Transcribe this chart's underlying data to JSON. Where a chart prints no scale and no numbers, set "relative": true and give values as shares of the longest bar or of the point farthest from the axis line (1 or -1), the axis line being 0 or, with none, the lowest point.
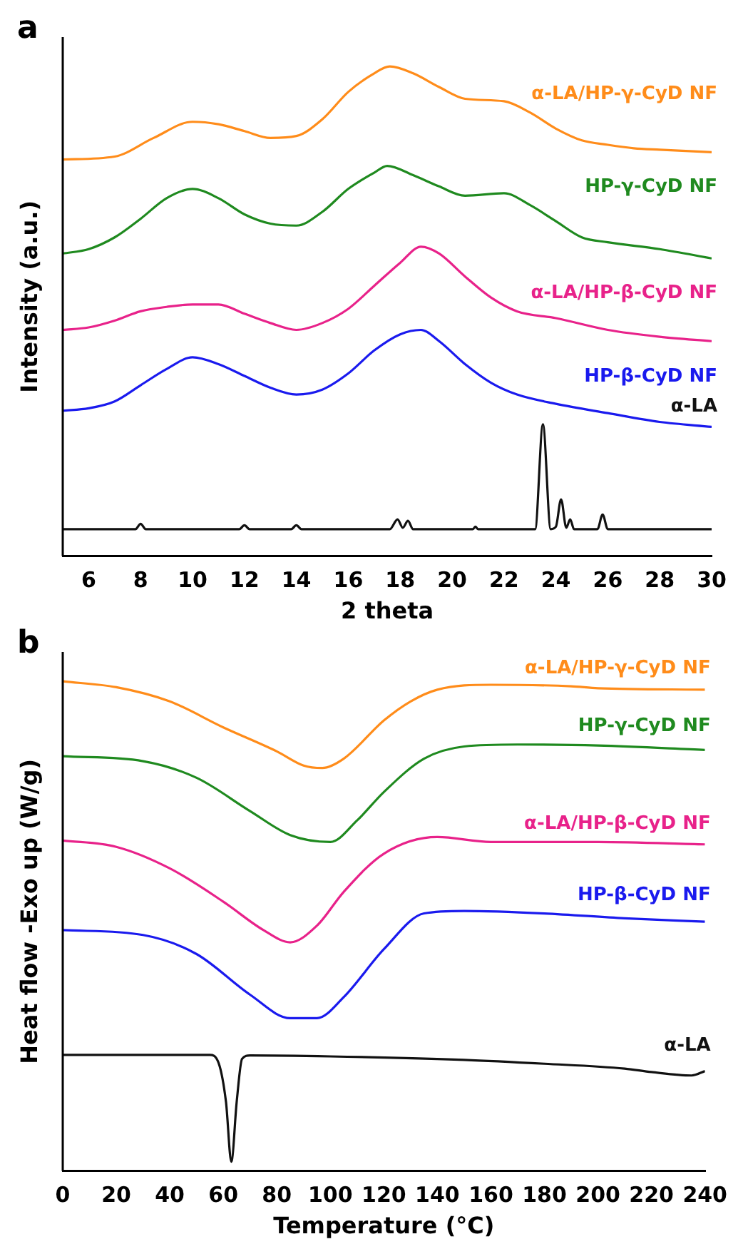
{
  "chart_data": [
    {
      "type": "line",
      "title": "a",
      "xlabel": "2 theta",
      "ylabel": "Intensity (a.u.)",
      "relative": true,
      "legend": false,
      "grid": false,
      "marker": "none",
      "line_style": "solid",
      "xlim": [
        5,
        30
      ],
      "xticks": [
        6,
        8,
        10,
        12,
        14,
        16,
        18,
        20,
        22,
        24,
        26,
        28,
        30
      ],
      "series": [
        {
          "name": "α-LA/HP-γ-CyD NF",
          "color": "#ff8c1a",
          "x": [
            5,
            7,
            8.5,
            10,
            11,
            12,
            13,
            14,
            15,
            16,
            17,
            17.6,
            18.5,
            19.5,
            20.5,
            22,
            23,
            24,
            25,
            26,
            27,
            28,
            30
          ],
          "values": [
            0.81,
            0.816,
            0.854,
            0.887,
            0.882,
            0.868,
            0.854,
            0.858,
            0.892,
            0.948,
            0.986,
            1.0,
            0.986,
            0.958,
            0.934,
            0.929,
            0.906,
            0.873,
            0.849,
            0.84,
            0.833,
            0.83,
            0.825
          ]
        },
        {
          "name": "HP-γ-CyD NF",
          "color": "#1f8a1f",
          "x": [
            5,
            6,
            7,
            8,
            9,
            10,
            11,
            12,
            13,
            14,
            15,
            16,
            17,
            17.5,
            18.5,
            19.5,
            20.5,
            22,
            23,
            24,
            25,
            26,
            28,
            30
          ],
          "values": [
            0.618,
            0.627,
            0.651,
            0.689,
            0.731,
            0.75,
            0.731,
            0.698,
            0.679,
            0.675,
            0.703,
            0.75,
            0.783,
            0.797,
            0.778,
            0.755,
            0.736,
            0.741,
            0.717,
            0.684,
            0.651,
            0.641,
            0.627,
            0.608
          ]
        },
        {
          "name": "α-LA/HP-β-CyD NF",
          "color": "#e8228a",
          "x": [
            5,
            6,
            7,
            8,
            9,
            10,
            11,
            12,
            13,
            14,
            15,
            16,
            17,
            18,
            18.8,
            19.5,
            20.5,
            21.5,
            22.5,
            24,
            26,
            28,
            30
          ],
          "values": [
            0.462,
            0.467,
            0.481,
            0.5,
            0.509,
            0.514,
            0.514,
            0.495,
            0.476,
            0.462,
            0.476,
            0.505,
            0.552,
            0.599,
            0.632,
            0.618,
            0.571,
            0.528,
            0.5,
            0.486,
            0.462,
            0.448,
            0.439
          ]
        },
        {
          "name": "HP-β-CyD NF",
          "color": "#1a1aee",
          "x": [
            5,
            6,
            7,
            8,
            9,
            10,
            11,
            12,
            13,
            14,
            15,
            16,
            17,
            18,
            18.8,
            19.5,
            20.5,
            21.5,
            22.5,
            24,
            26,
            28,
            30
          ],
          "values": [
            0.297,
            0.302,
            0.316,
            0.349,
            0.382,
            0.406,
            0.392,
            0.368,
            0.344,
            0.33,
            0.34,
            0.373,
            0.42,
            0.453,
            0.462,
            0.439,
            0.392,
            0.354,
            0.33,
            0.311,
            0.292,
            0.274,
            0.264
          ]
        },
        {
          "name": "α-LA",
          "color": "#111111",
          "x": [
            5,
            7.8,
            8.0,
            8.2,
            11.8,
            12,
            12.2,
            13.8,
            14,
            14.2,
            17.6,
            17.9,
            18.1,
            18.3,
            18.5,
            20.8,
            20.9,
            21.0,
            23.2,
            23.5,
            23.8,
            24.0,
            24.2,
            24.4,
            24.55,
            24.7,
            25.6,
            25.8,
            26.0,
            30
          ],
          "values": [
            0.055,
            0.055,
            0.066,
            0.055,
            0.055,
            0.063,
            0.055,
            0.055,
            0.063,
            0.055,
            0.055,
            0.075,
            0.058,
            0.072,
            0.055,
            0.055,
            0.06,
            0.055,
            0.055,
            0.269,
            0.055,
            0.06,
            0.116,
            0.058,
            0.075,
            0.055,
            0.055,
            0.085,
            0.055,
            0.055
          ]
        }
      ]
    },
    {
      "type": "line",
      "title": "b",
      "xlabel": "Temperature (°C)",
      "ylabel": "Heat flow -Exo up (W/g)",
      "relative": true,
      "legend": false,
      "grid": false,
      "marker": "none",
      "line_style": "solid",
      "xlim": [
        0,
        240
      ],
      "xticks": [
        0,
        20,
        40,
        60,
        80,
        100,
        120,
        140,
        160,
        180,
        200,
        220,
        240
      ],
      "series": [
        {
          "name": "α-LA/HP-γ-CyD NF",
          "color": "#ff8c1a",
          "x": [
            0,
            20,
            40,
            60,
            80,
            90,
            97,
            105,
            120,
            130,
            140,
            160,
            190,
            200,
            240
          ],
          "values": [
            1.0,
            0.988,
            0.959,
            0.906,
            0.857,
            0.828,
            0.823,
            0.842,
            0.92,
            0.959,
            0.983,
            0.993,
            0.99,
            0.986,
            0.983
          ]
        },
        {
          "name": "HP-γ-CyD NF",
          "color": "#1f8a1f",
          "x": [
            0,
            30,
            50,
            70,
            85,
            100,
            110,
            120,
            135,
            150,
            170,
            200,
            240
          ],
          "values": [
            0.847,
            0.837,
            0.803,
            0.735,
            0.686,
            0.672,
            0.716,
            0.774,
            0.842,
            0.867,
            0.871,
            0.869,
            0.86
          ]
        },
        {
          "name": "α-LA/HP-β-CyD NF",
          "color": "#e8228a",
          "x": [
            0,
            20,
            40,
            60,
            75,
            85,
            95,
            105,
            120,
            140,
            160,
            200,
            240
          ],
          "values": [
            0.675,
            0.662,
            0.618,
            0.55,
            0.492,
            0.467,
            0.501,
            0.57,
            0.648,
            0.682,
            0.672,
            0.672,
            0.667
          ]
        },
        {
          "name": "HP-β-CyD NF",
          "color": "#1a1aee",
          "x": [
            0,
            30,
            50,
            70,
            85,
            95,
            105,
            120,
            135,
            150,
            180,
            210,
            240
          ],
          "values": [
            0.492,
            0.482,
            0.443,
            0.36,
            0.312,
            0.312,
            0.355,
            0.453,
            0.526,
            0.531,
            0.526,
            0.516,
            0.509
          ]
        },
        {
          "name": "α-LA",
          "color": "#111111",
          "x": [
            0,
            55,
            58,
            61,
            63,
            65,
            67,
            70,
            100,
            150,
            180,
            210,
            220,
            235,
            240
          ],
          "values": [
            0.237,
            0.237,
            0.224,
            0.141,
            0.019,
            0.141,
            0.229,
            0.236,
            0.234,
            0.227,
            0.219,
            0.209,
            0.202,
            0.195,
            0.204
          ]
        }
      ]
    }
  ]
}
